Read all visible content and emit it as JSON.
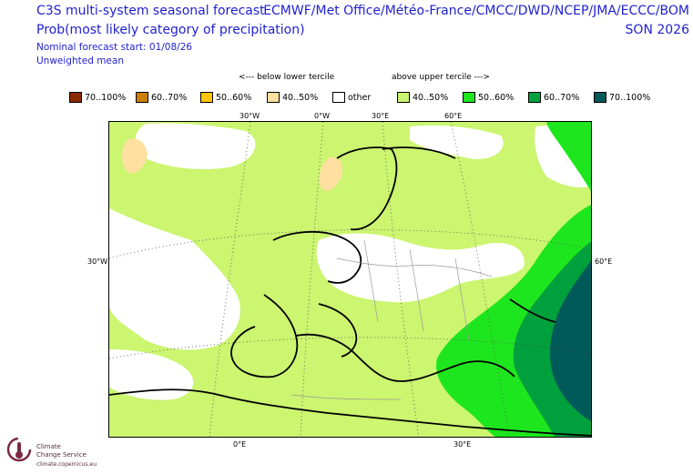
{
  "header": {
    "title_line1": "C3S multi-system seasonal forecast",
    "title_line2": "Prob(most likely category of precipitation)",
    "line3": "Nominal forecast start: 01/08/26",
    "line4": "Unweighted mean",
    "centres": "ECMWF/Met Office/Météo-France/CMCC/DWD/NCEP/JMA/ECCC/BOM",
    "season": "SON 2026"
  },
  "legend": {
    "below_caption": "<--- below lower tercile",
    "above_caption": "above upper tercile --->",
    "items": [
      {
        "label": "70..100%",
        "color": "#8b2a00"
      },
      {
        "label": "60..70%",
        "color": "#cc8000"
      },
      {
        "label": "50..60%",
        "color": "#ffc400"
      },
      {
        "label": "40..50%",
        "color": "#ffe0a0"
      },
      {
        "label": "other",
        "color": "#ffffff"
      },
      {
        "label": "40..50%",
        "color": "#ccf570"
      },
      {
        "label": "50..60%",
        "color": "#1ee61e"
      },
      {
        "label": "60..70%",
        "color": "#00a03c"
      },
      {
        "label": "70..100%",
        "color": "#005a5a"
      }
    ]
  },
  "map": {
    "lon_labels_top": [
      "30°W",
      "0°W",
      "30°E",
      "60°E"
    ],
    "lon_labels_bottom": [
      "0°E",
      "30°E"
    ],
    "lat_label_left": "30°W",
    "lat_label_right": "60°E"
  },
  "logo": {
    "line1": "Climate",
    "line2": "Change Service",
    "url": "climate.copernicus.eu"
  }
}
